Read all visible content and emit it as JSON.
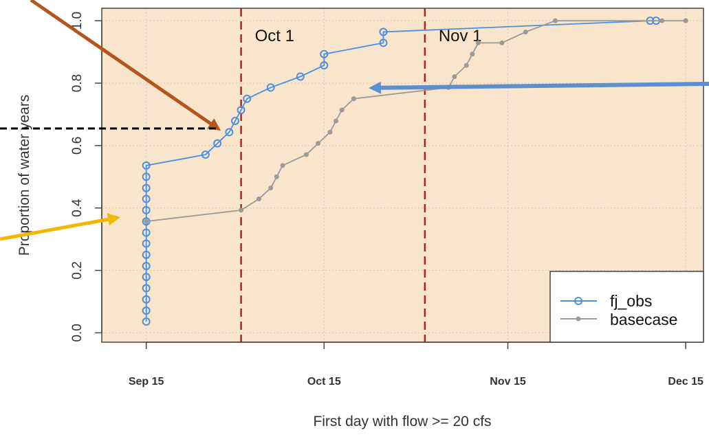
{
  "chart_data": {
    "type": "line",
    "title": "",
    "xlabel": "First day with flow >= 20 cfs",
    "ylabel": "Proportion of water years",
    "xlim": [
      250.5,
      352
    ],
    "ylim": [
      -0.03,
      1.04
    ],
    "x_ticks": [
      {
        "value": 258,
        "label": "Sep 15"
      },
      {
        "value": 288,
        "label": "Oct 15"
      },
      {
        "value": 319,
        "label": "Nov 15"
      },
      {
        "value": 349,
        "label": "Dec 15"
      }
    ],
    "y_ticks": [
      {
        "value": 0.0,
        "label": "0.0"
      },
      {
        "value": 0.2,
        "label": "0.2"
      },
      {
        "value": 0.4,
        "label": "0.4"
      },
      {
        "value": 0.6,
        "label": "0.6"
      },
      {
        "value": 0.8,
        "label": "0.8"
      },
      {
        "value": 1.0,
        "label": "1.0"
      }
    ],
    "grid": true,
    "background_color": "#f8e5cc",
    "vertical_lines": [
      {
        "x": 274,
        "label": "Oct 1",
        "color": "#b22222"
      },
      {
        "x": 305,
        "label": "Nov 1",
        "color": "#b22222"
      }
    ],
    "series": [
      {
        "name": "fj_obs",
        "color": "#4a90e2",
        "marker": "open-circle",
        "x": [
          258,
          258,
          258,
          258,
          258,
          258,
          258,
          258,
          258,
          258,
          258,
          258,
          258,
          258,
          258,
          268,
          270,
          272,
          273,
          274,
          275,
          279,
          284,
          288,
          288,
          298,
          298,
          343,
          344
        ],
        "y": [
          0.036,
          0.071,
          0.107,
          0.143,
          0.179,
          0.214,
          0.25,
          0.286,
          0.321,
          0.357,
          0.393,
          0.429,
          0.464,
          0.5,
          0.536,
          0.571,
          0.607,
          0.643,
          0.679,
          0.714,
          0.75,
          0.786,
          0.821,
          0.857,
          0.893,
          0.929,
          0.964,
          1.0,
          1.0
        ]
      },
      {
        "name": "basecase",
        "color": "#9a9a9a",
        "marker": "filled-dot",
        "x": [
          258,
          274,
          277,
          279,
          280,
          281,
          285,
          287,
          289,
          290,
          291,
          293,
          309,
          310,
          312,
          313,
          314,
          318,
          322,
          327,
          345,
          349,
          349
        ],
        "y": [
          0.357,
          0.393,
          0.429,
          0.464,
          0.5,
          0.536,
          0.571,
          0.607,
          0.643,
          0.679,
          0.714,
          0.75,
          0.786,
          0.821,
          0.857,
          0.893,
          0.929,
          0.929,
          0.964,
          1.0,
          1.0,
          1.0,
          1.0
        ]
      }
    ],
    "legend": {
      "placement": "bottom-right",
      "entries": [
        "fj_obs",
        "basecase"
      ]
    },
    "annotation_arrows": [
      {
        "color": "#b5541b",
        "target_series": "fj_obs"
      },
      {
        "color": "#5b8fcf",
        "target_series": "fj_obs"
      },
      {
        "color": "#f2b705",
        "target_series": "basecase"
      },
      {
        "color": "#000000",
        "style": "dashed"
      }
    ]
  }
}
